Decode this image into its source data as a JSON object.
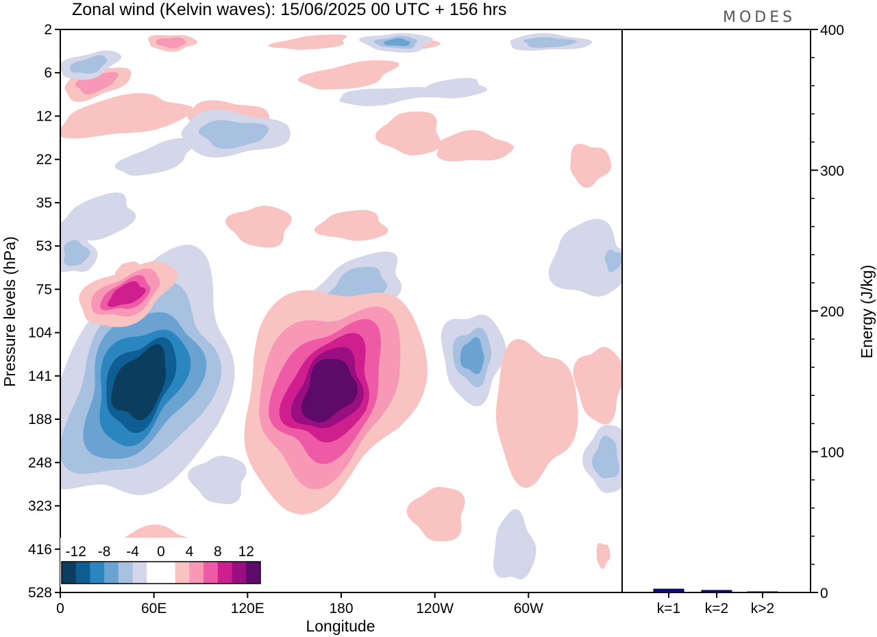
{
  "chart_data": {
    "type": "heatmap",
    "title": "Zonal wind (Kelvin waves):  15/06/2025  00 UTC  + 156 hrs",
    "logo_text": "MODES",
    "xlabel": "Longitude",
    "ylabel": "Pressure levels (hPa)",
    "x_ticks": [
      "0",
      "60E",
      "120E",
      "180",
      "120W",
      "60W"
    ],
    "y_ticks": [
      "2",
      "6",
      "12",
      "22",
      "35",
      "53",
      "75",
      "104",
      "141",
      "188",
      "248",
      "323",
      "416",
      "528"
    ],
    "colorbar": {
      "tick_labels": [
        "-12",
        "-8",
        "-4",
        "0",
        "4",
        "8",
        "12"
      ],
      "colors": [
        "#0b3d5f",
        "#0e5e93",
        "#2b86c0",
        "#6aa3d2",
        "#a8c1e0",
        "#d4d6ea",
        "#ffffff",
        "#ffffff",
        "#f8c3c0",
        "#f798b6",
        "#ee5aa5",
        "#cf1f8e",
        "#990e80",
        "#5e0a6b"
      ]
    },
    "features": [
      {
        "sign": "negative",
        "peak": -14,
        "lon_center": 40,
        "level_center": 141
      },
      {
        "sign": "positive",
        "peak": 14,
        "lon_center": 185,
        "level_center": 141
      },
      {
        "sign": "positive",
        "peak": 8,
        "lon_center": 50,
        "level_center": 75
      }
    ],
    "energy": {
      "ylabel": "Energy (J/kg)",
      "ylim": [
        0,
        400
      ],
      "y_ticks": [
        "0",
        "100",
        "200",
        "300",
        "400"
      ],
      "categories": [
        "k=1",
        "k=2",
        "k>2"
      ],
      "values": [
        2.4,
        1.5,
        0.5
      ],
      "bar_color": "#0b0b9e"
    }
  }
}
